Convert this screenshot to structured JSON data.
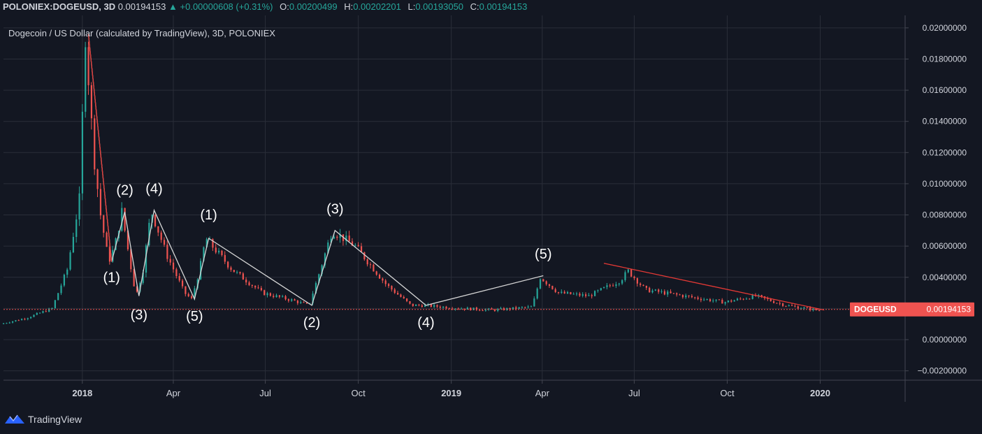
{
  "header": {
    "symbol": "POLONIEX:DOGEUSD, 3D",
    "price": "0.00194153",
    "change_arrow": "▲",
    "change": "+0.00000608 (+0.31%)",
    "o_label": "O:",
    "o_value": "0.00200499",
    "h_label": "H:",
    "h_value": "0.00202201",
    "l_label": "L:",
    "l_value": "0.00193050",
    "c_label": "C:",
    "c_value": "0.00194153"
  },
  "chart_data": {
    "type": "candlestick",
    "title": "Dogecoin / US Dollar (calculated by TradingView), 3D, POLONIEX",
    "x_axis": {
      "start_date": "2017-10-15",
      "end_date": "2020-03-25",
      "ticks": [
        {
          "label": "2018",
          "date": "2018-01-01",
          "bold": true
        },
        {
          "label": "Apr",
          "date": "2018-04-01"
        },
        {
          "label": "Jul",
          "date": "2018-07-01"
        },
        {
          "label": "Oct",
          "date": "2018-10-01"
        },
        {
          "label": "2019",
          "date": "2019-01-01",
          "bold": true
        },
        {
          "label": "Apr",
          "date": "2019-04-01"
        },
        {
          "label": "Jul",
          "date": "2019-07-01"
        },
        {
          "label": "Oct",
          "date": "2019-10-01"
        },
        {
          "label": "2020",
          "date": "2020-01-01",
          "bold": true
        }
      ]
    },
    "y_axis": {
      "min": -0.0026,
      "max": 0.0208,
      "ticks": [
        "0.02000000",
        "0.01800000",
        "0.01600000",
        "0.01400000",
        "0.01200000",
        "0.01000000",
        "0.00800000",
        "0.00600000",
        "0.00400000",
        "0.00200000",
        "0.00000000",
        "−0.00200000"
      ],
      "tick_values": [
        0.02,
        0.018,
        0.016,
        0.014,
        0.012,
        0.01,
        0.008,
        0.006,
        0.004,
        0.002,
        0,
        -0.002
      ]
    },
    "last_price": {
      "label": "DOGEUSD",
      "value": "0.00194153",
      "y": 0.00194153
    },
    "price_path": [
      [
        "2017-10-15",
        0.001
      ],
      [
        "2017-11-10",
        0.0014
      ],
      [
        "2017-12-05",
        0.002
      ],
      [
        "2017-12-20",
        0.0045
      ],
      [
        "2018-01-01",
        0.009
      ],
      [
        "2018-01-07",
        0.0196
      ],
      [
        "2018-01-15",
        0.012
      ],
      [
        "2018-01-22",
        0.008
      ],
      [
        "2018-01-30",
        0.005
      ],
      [
        "2018-02-05",
        0.006
      ],
      [
        "2018-02-12",
        0.0082
      ],
      [
        "2018-02-20",
        0.005
      ],
      [
        "2018-02-26",
        0.0028
      ],
      [
        "2018-03-05",
        0.0045
      ],
      [
        "2018-03-13",
        0.0083
      ],
      [
        "2018-03-28",
        0.0055
      ],
      [
        "2018-04-15",
        0.003
      ],
      [
        "2018-04-22",
        0.0026
      ],
      [
        "2018-04-30",
        0.0045
      ],
      [
        "2018-05-06",
        0.0065
      ],
      [
        "2018-06-01",
        0.0045
      ],
      [
        "2018-07-01",
        0.003
      ],
      [
        "2018-08-01",
        0.0025
      ],
      [
        "2018-08-16",
        0.0022
      ],
      [
        "2018-08-25",
        0.004
      ],
      [
        "2018-09-08",
        0.007
      ],
      [
        "2018-10-01",
        0.006
      ],
      [
        "2018-11-01",
        0.0035
      ],
      [
        "2018-11-25",
        0.0022
      ],
      [
        "2018-12-07",
        0.0022
      ],
      [
        "2019-01-15",
        0.002
      ],
      [
        "2019-02-15",
        0.0019
      ],
      [
        "2019-03-25",
        0.0021
      ],
      [
        "2019-04-02",
        0.004
      ],
      [
        "2019-04-20",
        0.003
      ],
      [
        "2019-05-20",
        0.0028
      ],
      [
        "2019-06-20",
        0.0038
      ],
      [
        "2019-06-28",
        0.0044
      ],
      [
        "2019-07-15",
        0.0032
      ],
      [
        "2019-09-01",
        0.0027
      ],
      [
        "2019-10-01",
        0.0024
      ],
      [
        "2019-11-01",
        0.0028
      ],
      [
        "2019-12-01",
        0.0022
      ],
      [
        "2019-12-31",
        0.0019
      ]
    ],
    "wave_lines": [
      {
        "color": "#d6d6d6",
        "points": [
          [
            "2018-01-07",
            0.0196
          ],
          [
            "2018-01-30",
            0.005
          ],
          [
            "2018-02-12",
            0.0082
          ],
          [
            "2018-02-26",
            0.0028
          ],
          [
            "2018-03-13",
            0.0083
          ],
          [
            "2018-04-22",
            0.0026
          ],
          [
            "2018-05-06",
            0.0065
          ],
          [
            "2018-08-16",
            0.0022
          ],
          [
            "2018-09-08",
            0.007
          ],
          [
            "2018-12-07",
            0.0022
          ],
          [
            "2019-04-02",
            0.0041
          ]
        ]
      },
      {
        "color": "#e53935",
        "points": [
          [
            "2018-01-07",
            0.0196
          ],
          [
            "2018-01-30",
            0.005
          ]
        ]
      },
      {
        "color": "#e53935",
        "points": [
          [
            "2019-06-01",
            0.0049
          ],
          [
            "2020-01-05",
            0.0019
          ]
        ]
      }
    ],
    "annotations": [
      {
        "text": "(2)",
        "date": "2018-02-12",
        "y": 0.0093
      },
      {
        "text": "(4)",
        "date": "2018-03-13",
        "y": 0.0094
      },
      {
        "text": "(1)",
        "date": "2018-01-30",
        "y": 0.0037
      },
      {
        "text": "(3)",
        "date": "2018-02-26",
        "y": 0.0013
      },
      {
        "text": "(5)",
        "date": "2018-04-22",
        "y": 0.0012
      },
      {
        "text": "(1)",
        "date": "2018-05-06",
        "y": 0.0077
      },
      {
        "text": "(2)",
        "date": "2018-08-16",
        "y": 0.0008
      },
      {
        "text": "(3)",
        "date": "2018-09-08",
        "y": 0.0081
      },
      {
        "text": "(4)",
        "date": "2018-12-07",
        "y": 0.0008
      },
      {
        "text": "(5)",
        "date": "2019-04-02",
        "y": 0.0052
      }
    ],
    "colors": {
      "up": "#26a69a",
      "down": "#ef5350",
      "background": "#131722",
      "grid": "#2a2e39",
      "text": "#d1d4dc"
    },
    "grid": true
  },
  "footer": {
    "brand": "TradingView"
  }
}
